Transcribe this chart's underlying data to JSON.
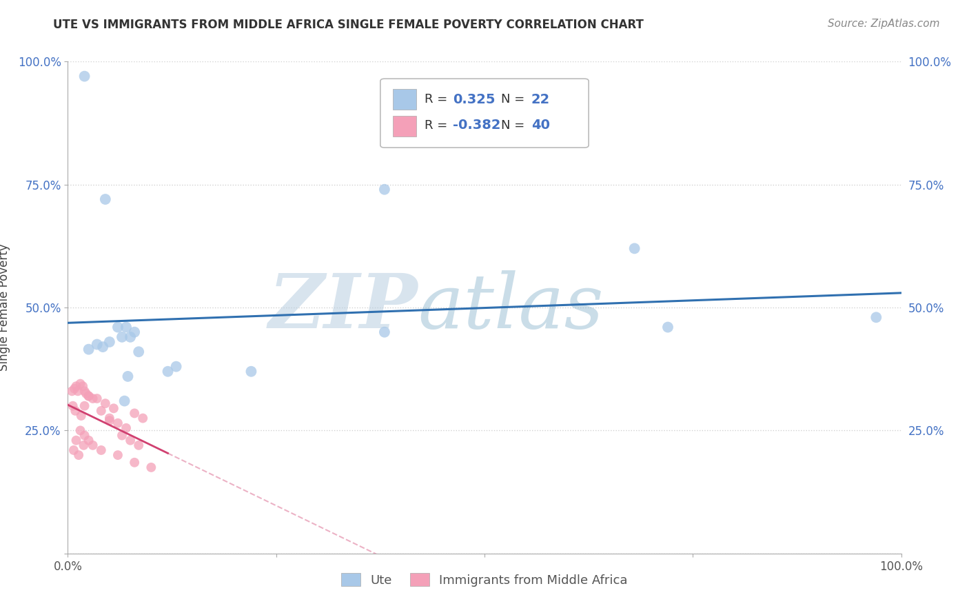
{
  "title": "UTE VS IMMIGRANTS FROM MIDDLE AFRICA SINGLE FEMALE POVERTY CORRELATION CHART",
  "source": "Source: ZipAtlas.com",
  "ylabel": "Single Female Poverty",
  "legend_label1": "Ute",
  "legend_label2": "Immigrants from Middle Africa",
  "R1": 0.325,
  "N1": 22,
  "R2": -0.382,
  "N2": 40,
  "watermark_zip": "ZIP",
  "watermark_atlas": "atlas",
  "ute_color": "#a8c8e8",
  "immigrants_color": "#f4a0b8",
  "line_ute_color": "#3070b0",
  "line_immigrants_color": "#d04070",
  "background_color": "#ffffff",
  "grid_color": "#cccccc",
  "xmin": 0.0,
  "xmax": 100.0,
  "ymin": 0.0,
  "ymax": 100.0,
  "ute_x": [
    2.0,
    4.5,
    6.0,
    6.5,
    7.0,
    8.0,
    7.5,
    5.0,
    12.0,
    13.0,
    7.2,
    6.8,
    22.0,
    38.0,
    68.0,
    97.0,
    72.0,
    38.0,
    4.2,
    8.5,
    3.5,
    2.5
  ],
  "ute_y": [
    97.0,
    72.0,
    46.0,
    44.0,
    46.0,
    45.0,
    44.0,
    43.0,
    37.0,
    38.0,
    36.0,
    31.0,
    37.0,
    74.0,
    62.0,
    48.0,
    46.0,
    45.0,
    42.0,
    41.0,
    42.5,
    41.5
  ],
  "imm_x": [
    0.5,
    1.0,
    1.5,
    2.0,
    2.5,
    3.0,
    0.8,
    1.2,
    1.8,
    2.2,
    0.6,
    0.9,
    1.6,
    2.0,
    4.0,
    5.0,
    6.0,
    7.0,
    3.5,
    2.5,
    4.5,
    5.5,
    8.0,
    9.0,
    1.5,
    2.0,
    1.0,
    3.0,
    0.7,
    1.3,
    1.9,
    2.5,
    4.0,
    6.0,
    8.0,
    10.0,
    6.5,
    7.5,
    8.5,
    5.0
  ],
  "imm_y": [
    33.0,
    34.0,
    34.5,
    33.0,
    32.0,
    31.5,
    33.5,
    33.0,
    34.0,
    32.5,
    30.0,
    29.0,
    28.0,
    30.0,
    29.0,
    27.5,
    26.5,
    25.5,
    31.5,
    32.0,
    30.5,
    29.5,
    28.5,
    27.5,
    25.0,
    24.0,
    23.0,
    22.0,
    21.0,
    20.0,
    22.0,
    23.0,
    21.0,
    20.0,
    18.5,
    17.5,
    24.0,
    23.0,
    22.0,
    27.0
  ],
  "xticks": [
    0,
    25,
    50,
    75,
    100
  ],
  "xtick_labels": [
    "0.0%",
    "",
    "",
    "",
    "100.0%"
  ],
  "yticks": [
    0,
    25,
    50,
    75,
    100
  ],
  "ytick_labels": [
    "",
    "25.0%",
    "50.0%",
    "75.0%",
    "100.0%"
  ],
  "title_fontsize": 12,
  "tick_fontsize": 12,
  "label_fontsize": 12
}
